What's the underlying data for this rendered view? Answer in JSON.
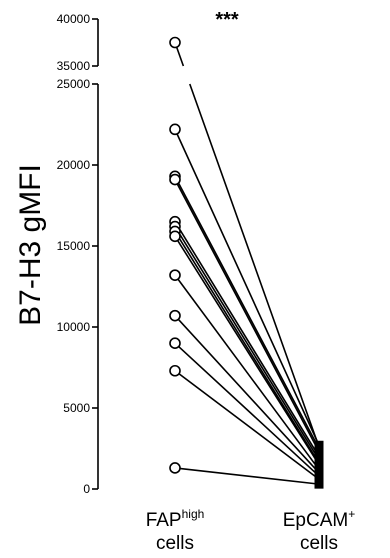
{
  "chart_data": {
    "type": "scatter",
    "subtype": "paired-dot (before-after) plot",
    "ylabel": "B7-H3 gMFI",
    "significance": "***",
    "y_axis_broken": true,
    "y_segments": [
      {
        "range": [
          0,
          25000
        ],
        "ticks": [
          0,
          5000,
          10000,
          15000,
          20000,
          25000
        ]
      },
      {
        "range": [
          35000,
          40000
        ],
        "ticks": [
          35000,
          40000
        ]
      }
    ],
    "categories": [
      {
        "main": "FAP",
        "sup": "high",
        "line2": "cells"
      },
      {
        "main": "EpCAM",
        "sup": "+",
        "line2": "cells"
      }
    ],
    "marker": "open-circle",
    "pairs": [
      {
        "fap_high": 37500,
        "epcam": 2600
      },
      {
        "fap_high": 22200,
        "epcam": 2700
      },
      {
        "fap_high": 19300,
        "epcam": 2500
      },
      {
        "fap_high": 19100,
        "epcam": 2300
      },
      {
        "fap_high": 16500,
        "epcam": 2000
      },
      {
        "fap_high": 16200,
        "epcam": 1800
      },
      {
        "fap_high": 15900,
        "epcam": 1600
      },
      {
        "fap_high": 15600,
        "epcam": 1500
      },
      {
        "fap_high": 13200,
        "epcam": 1200
      },
      {
        "fap_high": 10700,
        "epcam": 1000
      },
      {
        "fap_high": 9000,
        "epcam": 800
      },
      {
        "fap_high": 7300,
        "epcam": 600
      },
      {
        "fap_high": 1300,
        "epcam": 300
      }
    ]
  }
}
